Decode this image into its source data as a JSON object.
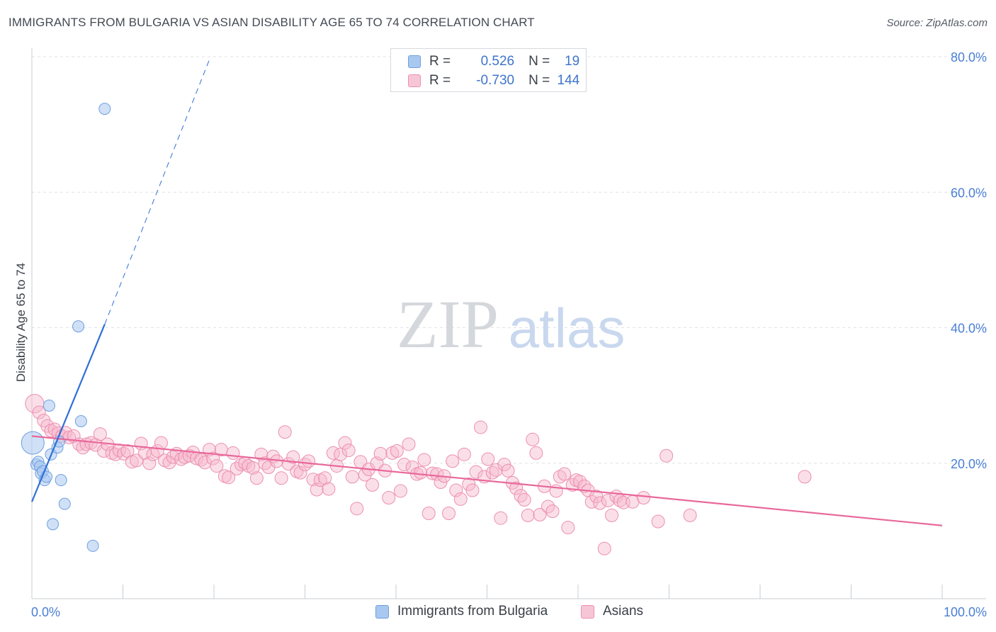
{
  "header": {
    "title": "IMMIGRANTS FROM BULGARIA VS ASIAN DISABILITY AGE 65 TO 74 CORRELATION CHART",
    "source": "Source: ZipAtlas.com"
  },
  "watermark": {
    "zip": "ZIP",
    "atlas": "atlas"
  },
  "legend": {
    "rows": [
      {
        "r_label": "R =",
        "r_value": "0.526",
        "n_label": "N =",
        "n_value": "19"
      },
      {
        "r_label": "R =",
        "r_value": "-0.730",
        "n_label": "N =",
        "n_value": "144"
      }
    ]
  },
  "bottom_legend": {
    "series_1": "Immigrants from Bulgaria",
    "series_2": "Asians"
  },
  "colors": {
    "bulgaria_fill": "#a9c8f0",
    "bulgaria_stroke": "#6f9fe0",
    "bulgaria_line": "#2f6fd6",
    "asians_fill": "#f7b8cd",
    "asians_stroke": "#ec8fb0",
    "asians_line": "#e8689a",
    "tick_text": "#4a7fd6",
    "grid": "#dfe2e6"
  },
  "chart_data": {
    "type": "scatter",
    "title": "IMMIGRANTS FROM BULGARIA VS ASIAN DISABILITY AGE 65 TO 74 CORRELATION CHART",
    "xlabel": "",
    "ylabel": "Disability Age 65 to 74",
    "xlim": [
      0,
      100
    ],
    "ylim": [
      0,
      82
    ],
    "y_ticks": [
      20,
      40,
      60,
      80
    ],
    "y_tick_labels": [
      "20.0%",
      "40.0%",
      "60.0%",
      "80.0%"
    ],
    "x_tick_labels": [
      "0.0%",
      "100.0%"
    ],
    "grid": true,
    "series": [
      {
        "name": "Immigrants from Bulgaria",
        "r": 0.526,
        "n": 19,
        "points": [
          [
            0.1,
            23.0
          ],
          [
            0.5,
            19.8
          ],
          [
            0.7,
            20.2
          ],
          [
            0.9,
            19.5
          ],
          [
            1.0,
            18.5
          ],
          [
            1.2,
            18.8
          ],
          [
            1.4,
            17.5
          ],
          [
            1.6,
            18.0
          ],
          [
            1.9,
            28.5
          ],
          [
            2.1,
            21.3
          ],
          [
            2.3,
            11.0
          ],
          [
            2.8,
            22.3
          ],
          [
            3.0,
            23.2
          ],
          [
            3.2,
            17.5
          ],
          [
            3.6,
            14.0
          ],
          [
            5.1,
            40.2
          ],
          [
            5.4,
            26.2
          ],
          [
            6.7,
            7.8
          ],
          [
            8.0,
            72.3
          ]
        ],
        "trend": {
          "x": [
            0.0,
            8.0
          ],
          "y": [
            14.3,
            40.5
          ]
        },
        "trend_extension": {
          "x": [
            8.0,
            19.6
          ],
          "y": [
            40.5,
            79.9
          ]
        }
      },
      {
        "name": "Asians",
        "r": -0.73,
        "n": 144,
        "points": [
          [
            0.3,
            28.8
          ],
          [
            0.8,
            27.5
          ],
          [
            1.3,
            26.3
          ],
          [
            1.7,
            25.5
          ],
          [
            2.1,
            24.8
          ],
          [
            2.5,
            25.0
          ],
          [
            2.9,
            24.4
          ],
          [
            3.3,
            24.0
          ],
          [
            3.7,
            24.5
          ],
          [
            4.1,
            23.8
          ],
          [
            4.6,
            24.0
          ],
          [
            5.2,
            22.8
          ],
          [
            5.6,
            22.3
          ],
          [
            6.0,
            22.8
          ],
          [
            6.5,
            23.0
          ],
          [
            7.0,
            22.7
          ],
          [
            7.5,
            24.3
          ],
          [
            7.9,
            21.8
          ],
          [
            8.3,
            22.8
          ],
          [
            8.8,
            21.5
          ],
          [
            9.2,
            21.3
          ],
          [
            9.6,
            21.9
          ],
          [
            10.1,
            21.4
          ],
          [
            10.5,
            21.8
          ],
          [
            11.0,
            20.2
          ],
          [
            11.5,
            20.4
          ],
          [
            12.0,
            22.9
          ],
          [
            12.4,
            21.5
          ],
          [
            12.9,
            20.0
          ],
          [
            13.3,
            21.3
          ],
          [
            13.8,
            21.8
          ],
          [
            14.2,
            23.0
          ],
          [
            14.6,
            20.4
          ],
          [
            15.1,
            20.1
          ],
          [
            15.5,
            20.9
          ],
          [
            15.9,
            21.4
          ],
          [
            16.4,
            20.6
          ],
          [
            16.8,
            20.9
          ],
          [
            17.3,
            21.1
          ],
          [
            17.7,
            21.6
          ],
          [
            18.1,
            20.7
          ],
          [
            18.6,
            20.5
          ],
          [
            19.0,
            20.1
          ],
          [
            19.5,
            22.0
          ],
          [
            19.9,
            20.7
          ],
          [
            20.3,
            19.6
          ],
          [
            20.8,
            22.0
          ],
          [
            21.2,
            18.1
          ],
          [
            21.6,
            17.9
          ],
          [
            22.1,
            21.5
          ],
          [
            22.5,
            19.2
          ],
          [
            23.0,
            19.8
          ],
          [
            23.4,
            20.0
          ],
          [
            23.8,
            19.6
          ],
          [
            24.3,
            19.3
          ],
          [
            24.7,
            17.8
          ],
          [
            25.2,
            21.3
          ],
          [
            25.6,
            20.0
          ],
          [
            26.0,
            19.4
          ],
          [
            26.5,
            21.0
          ],
          [
            26.9,
            20.3
          ],
          [
            27.4,
            17.8
          ],
          [
            27.8,
            24.6
          ],
          [
            28.2,
            19.9
          ],
          [
            28.7,
            20.9
          ],
          [
            29.1,
            18.8
          ],
          [
            29.5,
            18.6
          ],
          [
            30.0,
            19.8
          ],
          [
            30.4,
            20.3
          ],
          [
            30.9,
            17.6
          ],
          [
            31.3,
            16.1
          ],
          [
            31.7,
            17.5
          ],
          [
            32.2,
            17.8
          ],
          [
            32.6,
            16.2
          ],
          [
            33.1,
            21.5
          ],
          [
            33.5,
            19.6
          ],
          [
            33.9,
            21.3
          ],
          [
            34.4,
            23.0
          ],
          [
            34.8,
            21.9
          ],
          [
            35.2,
            18.0
          ],
          [
            35.7,
            13.3
          ],
          [
            36.1,
            20.2
          ],
          [
            36.6,
            18.3
          ],
          [
            37.0,
            19.1
          ],
          [
            37.4,
            16.8
          ],
          [
            37.9,
            20.0
          ],
          [
            38.3,
            21.4
          ],
          [
            38.8,
            18.9
          ],
          [
            39.2,
            14.9
          ],
          [
            39.6,
            21.5
          ],
          [
            40.1,
            21.8
          ],
          [
            40.5,
            15.9
          ],
          [
            40.9,
            19.8
          ],
          [
            41.4,
            22.8
          ],
          [
            41.8,
            19.4
          ],
          [
            42.3,
            18.4
          ],
          [
            42.7,
            18.6
          ],
          [
            43.1,
            20.5
          ],
          [
            43.6,
            12.6
          ],
          [
            44.0,
            18.5
          ],
          [
            44.5,
            18.4
          ],
          [
            44.9,
            17.2
          ],
          [
            45.3,
            18.1
          ],
          [
            45.8,
            12.6
          ],
          [
            46.2,
            20.3
          ],
          [
            46.6,
            16.0
          ],
          [
            47.1,
            14.7
          ],
          [
            47.5,
            21.3
          ],
          [
            48.0,
            16.9
          ],
          [
            48.4,
            16.0
          ],
          [
            48.8,
            18.7
          ],
          [
            49.3,
            25.3
          ],
          [
            49.7,
            18.0
          ],
          [
            50.1,
            20.6
          ],
          [
            50.6,
            18.6
          ],
          [
            51.0,
            19.0
          ],
          [
            51.5,
            11.9
          ],
          [
            51.9,
            19.8
          ],
          [
            52.3,
            18.9
          ],
          [
            52.8,
            17.1
          ],
          [
            53.2,
            16.3
          ],
          [
            53.7,
            15.2
          ],
          [
            54.1,
            14.6
          ],
          [
            54.5,
            12.3
          ],
          [
            55.0,
            23.5
          ],
          [
            55.4,
            21.5
          ],
          [
            55.8,
            12.4
          ],
          [
            56.3,
            16.6
          ],
          [
            56.7,
            13.6
          ],
          [
            57.2,
            12.9
          ],
          [
            57.6,
            15.9
          ],
          [
            58.0,
            18.0
          ],
          [
            58.5,
            18.4
          ],
          [
            58.9,
            10.5
          ],
          [
            59.4,
            16.8
          ],
          [
            59.8,
            17.5
          ],
          [
            60.2,
            17.3
          ],
          [
            60.7,
            16.6
          ],
          [
            61.1,
            16.0
          ],
          [
            61.5,
            14.3
          ],
          [
            62.0,
            15.1
          ],
          [
            62.4,
            14.1
          ],
          [
            62.9,
            7.4
          ],
          [
            63.3,
            14.5
          ],
          [
            63.7,
            12.3
          ],
          [
            64.2,
            15.1
          ],
          [
            64.6,
            14.5
          ],
          [
            65.0,
            14.2
          ],
          [
            66.0,
            14.3
          ],
          [
            67.2,
            14.9
          ],
          [
            68.8,
            11.4
          ],
          [
            69.7,
            21.1
          ],
          [
            72.3,
            12.3
          ],
          [
            84.9,
            18.0
          ]
        ],
        "trend": {
          "x": [
            0.0,
            100.0
          ],
          "y": [
            24.0,
            10.8
          ]
        }
      }
    ]
  }
}
